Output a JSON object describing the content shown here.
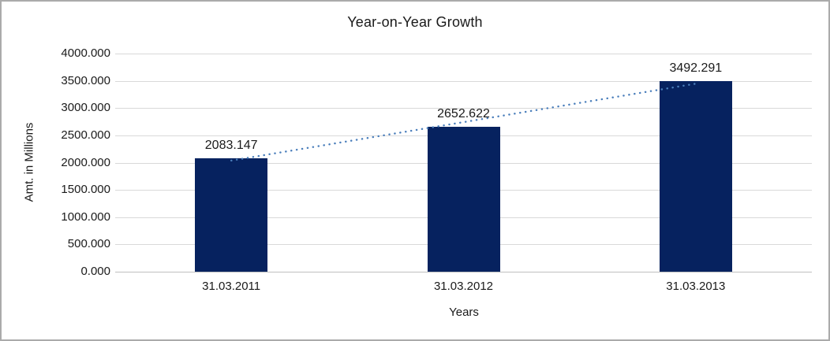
{
  "chart_data": {
    "type": "bar",
    "title": "Year-on-Year Growth",
    "xlabel": "Years",
    "ylabel": "Amt. in Millions",
    "categories": [
      "31.03.2011",
      "31.03.2012",
      "31.03.2013"
    ],
    "values": [
      2083.147,
      2652.622,
      3492.291
    ],
    "data_labels": [
      "2083.147",
      "2652.622",
      "3492.291"
    ],
    "ylim": [
      0,
      4000
    ],
    "y_tick_step": 500,
    "y_tick_labels": [
      "0.000",
      "500.000",
      "1000.000",
      "1500.000",
      "2000.000",
      "2500.000",
      "3000.000",
      "3500.000",
      "4000.000"
    ],
    "grid": true,
    "legend": "none",
    "trendline": {
      "type": "linear",
      "style": "dotted"
    },
    "colors": {
      "bar": "#06225F",
      "trendline": "#4A7EBB",
      "gridline": "#D9D9D9",
      "axis_line": "#BFBFBF",
      "text": "#1A1A1A",
      "frame_border": "#ABABAB",
      "background": "#FFFFFF"
    }
  }
}
